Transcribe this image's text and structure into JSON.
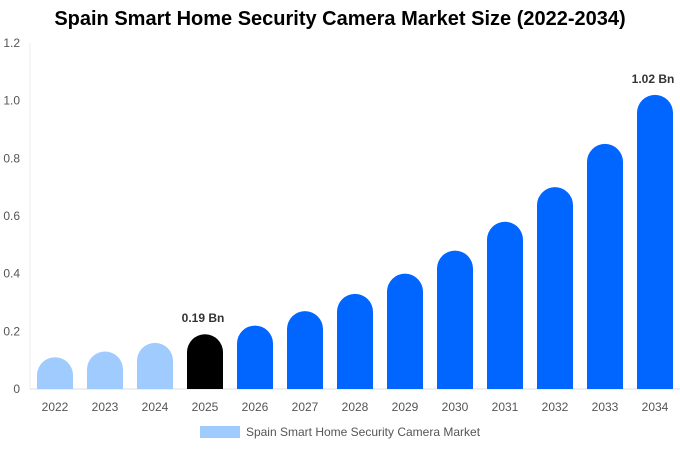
{
  "chart_data": {
    "type": "bar",
    "title": "Spain Smart Home Security Camera Market Size (2022-2034)",
    "categories": [
      "2022",
      "2023",
      "2024",
      "2025",
      "2026",
      "2027",
      "2028",
      "2029",
      "2030",
      "2031",
      "2032",
      "2033",
      "2034"
    ],
    "series": [
      {
        "name": "Spain Smart Home Security Camera Market",
        "values": [
          0.11,
          0.13,
          0.16,
          0.19,
          0.22,
          0.27,
          0.33,
          0.4,
          0.48,
          0.58,
          0.7,
          0.85,
          1.02
        ]
      }
    ],
    "ylim": [
      0,
      1.2
    ],
    "yticks": [
      "0",
      "0.2",
      "0.4",
      "0.6",
      "0.8",
      "1.0",
      "1.2"
    ],
    "data_labels": [
      {
        "category": "2025",
        "text": "0.19 Bn"
      },
      {
        "category": "2034",
        "text": "1.02 Bn"
      }
    ],
    "colors": {
      "historical": "#a0cbff",
      "base_year": "#000000",
      "forecast": "#0066ff"
    },
    "grid": false,
    "legend": "bottom"
  }
}
